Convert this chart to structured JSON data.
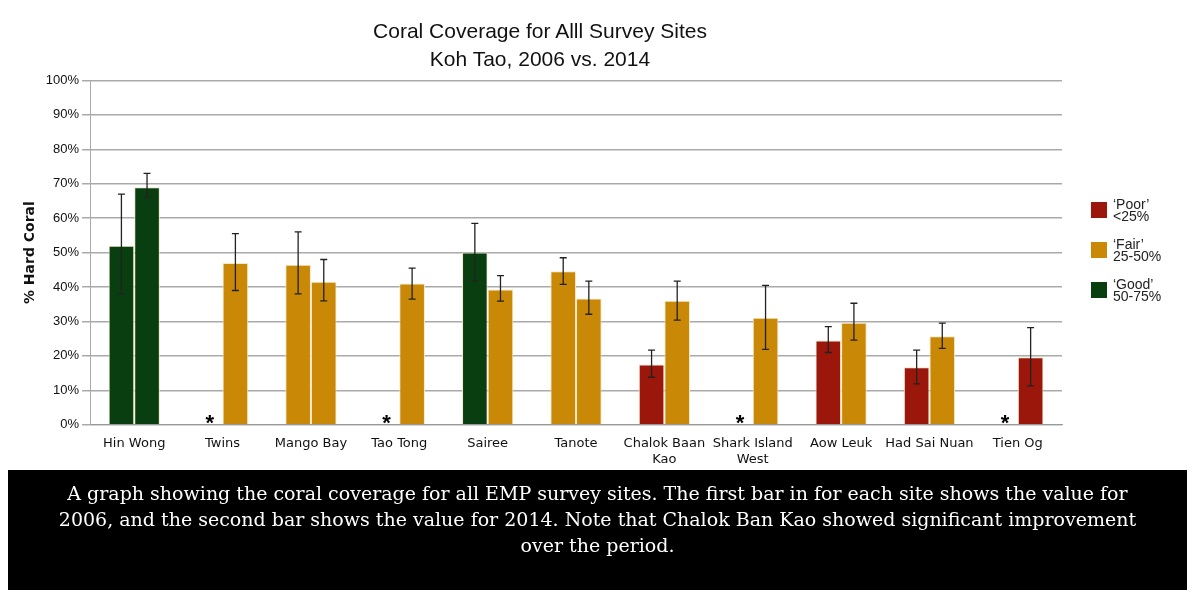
{
  "chart_data": {
    "type": "bar",
    "title": "Coral Coverage for Alll Survey Sites",
    "subtitle": "Koh Tao, 2006 vs. 2014",
    "ylabel": "% Hard Coral",
    "categories": [
      "Hin Wong",
      "Twins",
      "Mango Bay",
      "Tao Tong",
      "Sairee",
      "Tanote",
      "Chalok Baan Kao",
      "Shark Island West",
      "Aow Leuk",
      "Had Sai Nuan",
      "Tien Og"
    ],
    "series": [
      {
        "colors": [
          "#093f10",
          "#c98806",
          "#c98806",
          "#c98806",
          "#093f10",
          "#c98806",
          "#9b160b",
          "#c98806",
          "#9b160b",
          "#9b160b",
          "#9b160b"
        ],
        "values": [
          52,
          null,
          46.5,
          null,
          50,
          44.6,
          17.5,
          null,
          24.5,
          16.7,
          null
        ],
        "errors": [
          [
            38,
            67
          ],
          null,
          [
            38,
            56
          ],
          null,
          [
            41.7,
            58.5
          ],
          [
            40.8,
            48.5
          ],
          [
            13.8,
            21.7
          ],
          null,
          [
            21,
            28.5
          ],
          [
            11.9,
            21.7
          ],
          null
        ],
        "value_labels": [
          null,
          "*",
          null,
          "*",
          null,
          null,
          null,
          "*",
          null,
          null,
          "*"
        ]
      },
      {
        "colors": [
          "#093f10",
          "#c98806",
          "#c98806",
          "#c98806",
          "#c98806",
          "#c98806",
          "#c98806",
          "#c98806",
          "#c98806",
          "#c98806",
          "#9b160b"
        ],
        "values": [
          69,
          47,
          41.5,
          41,
          39.3,
          36.7,
          36,
          31.1,
          29.6,
          25.7,
          19.6
        ],
        "errors": [
          [
            66,
            73
          ],
          [
            39,
            55.5
          ],
          [
            36,
            48
          ],
          [
            36.5,
            45.5
          ],
          [
            35.9,
            43.3
          ],
          [
            32.1,
            41.7
          ],
          [
            30.4,
            41.7
          ],
          [
            21.9,
            40.5
          ],
          [
            24.6,
            35.3
          ],
          [
            22.2,
            29.5
          ],
          [
            11.3,
            28.2
          ]
        ]
      }
    ],
    "ylim": [
      0,
      100
    ],
    "yticks": [
      {
        "value": 0,
        "label": "0%"
      },
      {
        "value": 10,
        "label": "10%"
      },
      {
        "value": 20,
        "label": "20%"
      },
      {
        "value": 30,
        "label": "30%"
      },
      {
        "value": 40,
        "label": "40%"
      },
      {
        "value": 50,
        "label": "50%"
      },
      {
        "value": 60,
        "label": "60%"
      },
      {
        "value": 70,
        "label": "70%"
      },
      {
        "value": 80,
        "label": "80%"
      },
      {
        "value": 90,
        "label": "90%"
      },
      {
        "value": 100,
        "label": "100%"
      }
    ],
    "grid": "y",
    "annotations": [
      "A graph showing the coral coverage for all EMP survey sites. The first bar in for each site shows the value for 2006, and the second bar shows the value for 2014. Note that Chalok Ban Kao showed significant improvement over the period.",
      "‘Poor’\n<25%",
      "‘Fair’\n25-50%",
      "‘Good’\n50-75%"
    ]
  }
}
